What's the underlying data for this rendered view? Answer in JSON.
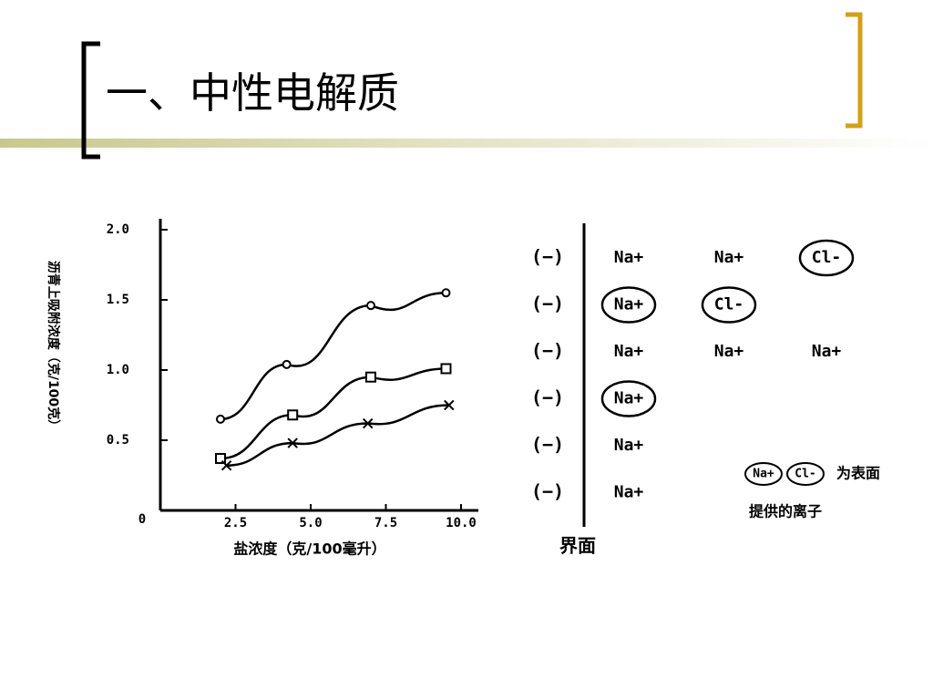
{
  "header": {
    "title": "一、中性电解质"
  },
  "chart_data": {
    "type": "line",
    "x_label": "盐浓度（克/100毫升）",
    "y_label": "沥青上吸附浓度（克/100克）",
    "xlim": [
      0,
      10
    ],
    "xticks": [
      {
        "value": 2.5,
        "label": "2.5"
      },
      {
        "value": 5,
        "label": "5.0"
      },
      {
        "value": 7.5,
        "label": "7.5"
      },
      {
        "value": 10,
        "label": "10.0"
      }
    ],
    "ylim": [
      0,
      2
    ],
    "yticks": [
      0,
      {
        "value": 0.5,
        "label": "0.5"
      },
      {
        "value": 1,
        "label": "1.0"
      },
      {
        "value": 1.5,
        "label": "1.5"
      },
      {
        "value": 2,
        "label": "2.0"
      }
    ],
    "series": [
      {
        "marker": "circle",
        "color": "#000000",
        "x": [
          2,
          4.2,
          7,
          9.5
        ],
        "values": [
          0.65,
          1.04,
          1.46,
          1.55
        ]
      },
      {
        "marker": "square",
        "color": "#000000",
        "x": [
          2,
          4.4,
          7,
          9.5
        ],
        "values": [
          0.37,
          0.68,
          0.95,
          1.01
        ]
      },
      {
        "marker": "x",
        "color": "#000000",
        "x": [
          2.2,
          4.4,
          6.9,
          9.6
        ],
        "values": [
          0.32,
          0.48,
          0.62,
          0.75
        ]
      }
    ]
  },
  "diagram": {
    "interface_label": "界面",
    "rows": [
      {
        "label": "(−)",
        "ions": [
          {
            "text": "Na+",
            "circled": false
          },
          {
            "text": "Na+",
            "circled": false
          },
          {
            "text": "Cl-",
            "circled": true
          }
        ]
      },
      {
        "label": "(−)",
        "ions": [
          {
            "text": "Na+",
            "circled": true
          },
          {
            "text": "Cl-",
            "circled": true
          }
        ]
      },
      {
        "label": "(−)",
        "ions": [
          {
            "text": "Na+",
            "circled": false
          },
          {
            "text": "Na+",
            "circled": false
          },
          {
            "text": "Na+",
            "circled": false
          }
        ]
      },
      {
        "label": "(−)",
        "ions": [
          {
            "text": "Na+",
            "circled": true
          }
        ]
      },
      {
        "label": "(−)",
        "ions": [
          {
            "text": "Na+",
            "circled": false
          }
        ]
      },
      {
        "label": "(−)",
        "ions": [
          {
            "text": "Na+",
            "circled": false
          }
        ]
      }
    ],
    "legend": {
      "ions": [
        "Na+",
        "Cl-"
      ],
      "text_1": "为表面",
      "text_2": "提供的离子"
    }
  }
}
